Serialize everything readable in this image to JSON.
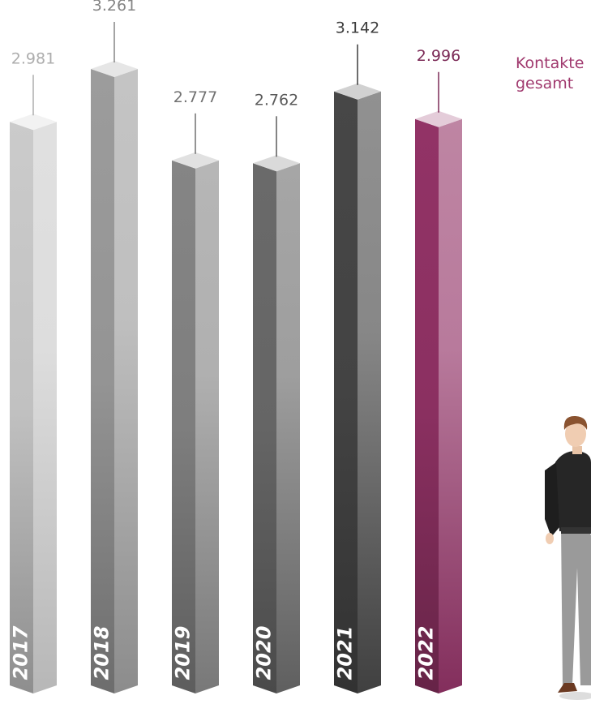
{
  "chart_data": {
    "type": "bar3d",
    "categories": [
      "2017",
      "2018",
      "2019",
      "2020",
      "2021",
      "2022"
    ],
    "values": [
      2981,
      3261,
      2777,
      2762,
      3142,
      2996
    ],
    "value_labels": [
      "2.981",
      "3.261",
      "2.777",
      "2.762",
      "3.142",
      "2.996"
    ],
    "colors": [
      "#cbcbcb",
      "#9c9c9c",
      "#858585",
      "#6a6a6a",
      "#474747",
      "#923366"
    ],
    "annotation": "Kontakte gesamt"
  }
}
